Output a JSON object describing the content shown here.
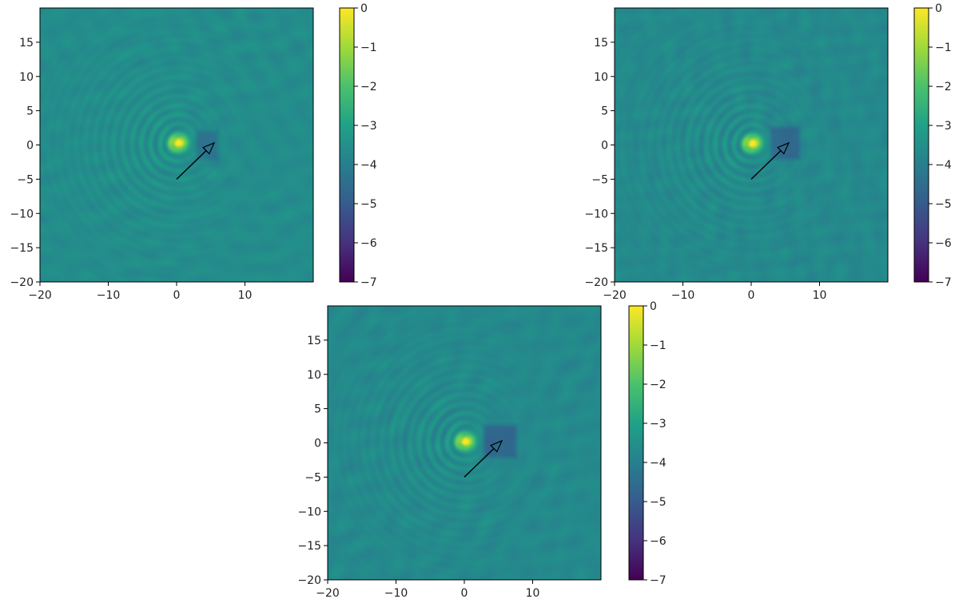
{
  "chart_data": [
    {
      "type": "heatmap",
      "panel": "top-left",
      "title": "",
      "xlabel": "",
      "ylabel": "",
      "xlim": [
        -20,
        20
      ],
      "ylim": [
        -20,
        20
      ],
      "xticks": [
        -20,
        -10,
        0,
        10
      ],
      "yticks": [
        -20,
        -15,
        -10,
        -5,
        0,
        5,
        10,
        15
      ],
      "colorbar": {
        "min": -7,
        "max": 0,
        "ticks": [
          0,
          -1,
          -2,
          -3,
          -4,
          -5,
          -6,
          -7
        ],
        "colormap": "viridis"
      },
      "background_level": -3.6,
      "peak": {
        "x": 0.3,
        "y": 0.3,
        "level": 0
      },
      "dark_hole": {
        "x0": 2.5,
        "x1": 6.5,
        "y0": -2.5,
        "y1": 2.5,
        "level": -4.3
      },
      "arrow": {
        "x0": 0,
        "y0": -5,
        "x1": 5.5,
        "y1": 0.3
      },
      "grid": false
    },
    {
      "type": "heatmap",
      "panel": "top-right",
      "title": "",
      "xlabel": "",
      "ylabel": "",
      "xlim": [
        -20,
        20
      ],
      "ylim": [
        -20,
        20
      ],
      "xticks": [
        -20,
        -10,
        0,
        10
      ],
      "yticks": [
        -20,
        -15,
        -10,
        -5,
        0,
        5,
        10,
        15
      ],
      "colorbar": {
        "min": -7,
        "max": 0,
        "ticks": [
          0,
          -1,
          -2,
          -3,
          -4,
          -5,
          -6,
          -7
        ],
        "colormap": "viridis"
      },
      "background_level": -3.7,
      "peak": {
        "x": 0.2,
        "y": 0.2,
        "level": 0
      },
      "dark_hole": {
        "x0": 2.5,
        "x1": 7.5,
        "y0": -2.5,
        "y1": 3,
        "level": -4.6
      },
      "arrow": {
        "x0": 0,
        "y0": -5,
        "x1": 5.5,
        "y1": 0.3
      },
      "grid": false
    },
    {
      "type": "heatmap",
      "panel": "bottom-center",
      "title": "",
      "xlabel": "",
      "ylabel": "",
      "xlim": [
        -20,
        20
      ],
      "ylim": [
        -20,
        20
      ],
      "xticks": [
        -20,
        -10,
        0,
        10
      ],
      "yticks": [
        -20,
        -15,
        -10,
        -5,
        0,
        5,
        10,
        15
      ],
      "colorbar": {
        "min": -7,
        "max": 0,
        "ticks": [
          0,
          -1,
          -2,
          -3,
          -4,
          -5,
          -6,
          -7
        ],
        "colormap": "viridis"
      },
      "background_level": -3.7,
      "peak": {
        "x": 0.2,
        "y": 0.2,
        "level": 0
      },
      "dark_hole": {
        "x0": 2.5,
        "x1": 8,
        "y0": -2.5,
        "y1": 3,
        "level": -4.7
      },
      "arrow": {
        "x0": 0,
        "y0": -5,
        "x1": 5.5,
        "y1": 0.3
      },
      "grid": false
    }
  ],
  "colors": {
    "viridis": [
      "#440154",
      "#46327e",
      "#365c8d",
      "#277f8e",
      "#1fa187",
      "#4ac16d",
      "#a0da39",
      "#fde725"
    ],
    "axis": "#000000",
    "arrow": "#000000"
  }
}
